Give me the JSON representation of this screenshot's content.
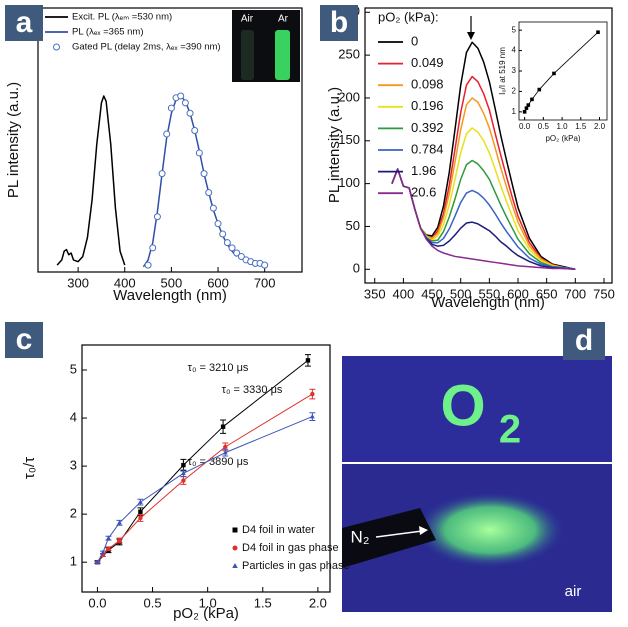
{
  "chart_data": [
    {
      "type": "line",
      "panel_label": "a",
      "xlabel": "Wavelength (nm)",
      "ylabel": "PL intensity (a.u.)",
      "xlim": [
        214,
        780
      ],
      "ylim": [
        -0.02,
        1.51
      ],
      "xticks": [
        300,
        400,
        500,
        600,
        700
      ],
      "inset_labels": [
        "Air",
        "Ar"
      ],
      "series": [
        {
          "name": "Excit. PL (λₑₘ =530 nm)",
          "color": "#000000",
          "style": "line",
          "x": [
            255,
            265,
            270,
            275,
            280,
            285,
            290,
            300,
            310,
            320,
            330,
            340,
            350,
            355,
            360,
            370,
            380,
            390,
            400
          ],
          "values": [
            0.02,
            0.05,
            0.1,
            0.11,
            0.08,
            0.09,
            0.05,
            0.04,
            0.07,
            0.18,
            0.4,
            0.72,
            0.96,
            1.0,
            0.97,
            0.72,
            0.35,
            0.1,
            0.02
          ]
        },
        {
          "name": "PL (λₑₓ =365 nm)",
          "color": "#2f4fa8",
          "style": "line",
          "x": [
            440,
            450,
            460,
            470,
            480,
            490,
            500,
            510,
            520,
            530,
            540,
            550,
            560,
            570,
            580,
            590,
            600,
            610,
            620,
            630,
            640
          ],
          "values": [
            0.01,
            0.05,
            0.15,
            0.33,
            0.55,
            0.76,
            0.9,
            0.98,
            1.0,
            0.97,
            0.9,
            0.8,
            0.68,
            0.55,
            0.44,
            0.34,
            0.26,
            0.19,
            0.14,
            0.1,
            0.07
          ]
        },
        {
          "name": "Gated PL (delay 2ms, λₑₓ =390 nm)",
          "color": "#4a6fc0",
          "style": "markers",
          "x": [
            450,
            460,
            470,
            480,
            490,
            500,
            510,
            520,
            530,
            540,
            550,
            560,
            570,
            580,
            590,
            600,
            610,
            620,
            630,
            640,
            650,
            660,
            670,
            680,
            690,
            700
          ],
          "values": [
            0.02,
            0.12,
            0.3,
            0.55,
            0.78,
            0.93,
            0.99,
            1.0,
            0.96,
            0.9,
            0.8,
            0.67,
            0.55,
            0.44,
            0.35,
            0.26,
            0.2,
            0.15,
            0.12,
            0.09,
            0.07,
            0.05,
            0.04,
            0.03,
            0.03,
            0.02
          ]
        }
      ]
    },
    {
      "type": "line",
      "panel_label": "b",
      "xlabel": "Wavelength (nm)",
      "ylabel": "PL intensity (a.u.)",
      "legend_title": "pO₂ (kPa):",
      "xlim": [
        333,
        764
      ],
      "ylim": [
        -16,
        305
      ],
      "xticks": [
        350,
        400,
        450,
        500,
        550,
        600,
        650,
        700,
        750
      ],
      "yticks": [
        0,
        50,
        100,
        150,
        200,
        250,
        300
      ],
      "x": [
        380,
        390,
        400,
        410,
        420,
        430,
        440,
        450,
        460,
        470,
        480,
        490,
        500,
        510,
        520,
        530,
        540,
        550,
        560,
        570,
        580,
        590,
        600,
        620,
        640,
        660,
        680,
        700
      ],
      "series": [
        {
          "name": "0",
          "color": "#000000",
          "style": "line",
          "values": [
            100,
            117,
            97,
            95,
            70,
            48,
            40,
            39,
            49,
            74,
            113,
            163,
            215,
            253,
            265,
            258,
            242,
            219,
            188,
            156,
            127,
            99,
            72,
            36,
            15,
            6,
            3,
            0
          ]
        },
        {
          "name": "0.049",
          "color": "#e8202a",
          "style": "line",
          "values": [
            100,
            117,
            97,
            95,
            70,
            48,
            39,
            37,
            45,
            65,
            98,
            140,
            183,
            215,
            225,
            219,
            205,
            186,
            159,
            133,
            108,
            84,
            62,
            31,
            13,
            5,
            2,
            0
          ]
        },
        {
          "name": "0.098",
          "color": "#f39a1e",
          "style": "line",
          "values": [
            100,
            117,
            97,
            95,
            70,
            48,
            39,
            36,
            42,
            60,
            88,
            125,
            163,
            192,
            200,
            195,
            182,
            165,
            142,
            118,
            96,
            75,
            55,
            27,
            12,
            5,
            2,
            0
          ]
        },
        {
          "name": "0.196",
          "color": "#e6e21a",
          "style": "line",
          "values": [
            100,
            117,
            97,
            95,
            70,
            48,
            38,
            34,
            39,
            52,
            75,
            105,
            136,
            158,
            165,
            160,
            150,
            136,
            117,
            97,
            79,
            62,
            45,
            23,
            10,
            4,
            2,
            0
          ]
        },
        {
          "name": "0.392",
          "color": "#2e9a3a",
          "style": "line",
          "values": [
            100,
            117,
            97,
            95,
            70,
            48,
            37,
            33,
            34,
            44,
            61,
            82,
            105,
            122,
            127,
            123,
            115,
            105,
            90,
            75,
            61,
            48,
            35,
            18,
            8,
            3,
            2,
            0
          ]
        },
        {
          "name": "0.784",
          "color": "#3a62c8",
          "style": "line",
          "values": [
            100,
            117,
            97,
            95,
            70,
            48,
            37,
            31,
            31,
            36,
            47,
            62,
            78,
            89,
            92,
            89,
            83,
            75,
            65,
            54,
            44,
            35,
            26,
            13,
            6,
            3,
            2,
            0
          ]
        },
        {
          "name": "1.96",
          "color": "#1c1c78",
          "style": "line",
          "values": [
            100,
            117,
            97,
            95,
            70,
            48,
            36,
            29,
            27,
            28,
            33,
            40,
            48,
            54,
            55,
            53,
            49,
            45,
            39,
            32,
            27,
            21,
            16,
            9,
            4,
            2,
            1,
            0
          ]
        },
        {
          "name": "20.6",
          "color": "#8a2a8e",
          "style": "line",
          "values": [
            100,
            117,
            97,
            95,
            70,
            48,
            35,
            27,
            22,
            19,
            17,
            15,
            14,
            13,
            12,
            11,
            10,
            9,
            8,
            7,
            6,
            5,
            4,
            3,
            2,
            1,
            1,
            0
          ]
        }
      ]
    },
    {
      "type": "line",
      "xlabel": "pO₂ (kPa)",
      "ylabel": "I₀/I at 519 nm",
      "xlim": [
        -0.15,
        2.2
      ],
      "ylim": [
        0.6,
        5.4
      ],
      "xticks": [
        {
          "value": 0,
          "label": "0.0"
        },
        0.5,
        {
          "value": 1,
          "label": "1.0"
        },
        1.5,
        {
          "value": 2,
          "label": "2.0"
        }
      ],
      "yticks": [
        1,
        2,
        3,
        4,
        5
      ],
      "x": [
        0,
        0.049,
        0.098,
        0.196,
        0.392,
        0.784,
        1.96
      ],
      "series": [
        {
          "color": "#000000",
          "style": "line+markers",
          "marker": "square",
          "values": [
            1,
            1.18,
            1.33,
            1.61,
            2.09,
            2.88,
            4.9
          ]
        }
      ]
    },
    {
      "type": "scatter",
      "panel_label": "c",
      "xlabel": "pO₂ (kPa)",
      "ylabel": "τ₀/τ",
      "xlim": [
        -0.14,
        2.11
      ],
      "ylim": [
        0.38,
        5.52
      ],
      "xticks": [
        {
          "value": 0,
          "label": "0.0"
        },
        0.5,
        {
          "value": 1,
          "label": "1.0"
        },
        1.5,
        {
          "value": 2,
          "label": "2.0"
        }
      ],
      "yticks": [
        1,
        2,
        3,
        4,
        5
      ],
      "annotations": [
        "τ₀ = 3210 μs",
        "τ₀ = 3330 μs",
        "τ₀ = 3890 μs"
      ],
      "series": [
        {
          "name": "D4 foil in water",
          "color": "#000000",
          "marker": "square",
          "x": [
            0,
            0.1,
            0.2,
            0.39,
            0.78,
            1.14,
            1.91
          ],
          "values": [
            1,
            1.25,
            1.42,
            2.05,
            3.02,
            3.82,
            5.2
          ],
          "errors": [
            0.03,
            0.05,
            0.06,
            0.08,
            0.12,
            0.14,
            0.12
          ]
        },
        {
          "name": "D4 foil in gas phase",
          "color": "#e0302a",
          "marker": "circle",
          "x": [
            0,
            0.05,
            0.1,
            0.2,
            0.39,
            0.78,
            1.16,
            1.95
          ],
          "values": [
            1,
            1.15,
            1.28,
            1.45,
            1.92,
            2.7,
            3.4,
            4.5
          ],
          "errors": [
            0.02,
            0.03,
            0.04,
            0.05,
            0.07,
            0.08,
            0.08,
            0.1
          ]
        },
        {
          "name": "Particles in gas phase",
          "color": "#3a55b8",
          "marker": "triangle",
          "x": [
            0,
            0.05,
            0.1,
            0.2,
            0.39,
            0.78,
            1.16,
            1.95
          ],
          "values": [
            1,
            1.2,
            1.5,
            1.82,
            2.25,
            2.85,
            3.28,
            4.03
          ],
          "errors": [
            0.02,
            0.03,
            0.04,
            0.05,
            0.06,
            0.07,
            0.07,
            0.08
          ]
        }
      ]
    }
  ],
  "photos": {
    "panel_label": "d",
    "sample_text": "O",
    "sample_subscript": "2",
    "gas_label": "N₂",
    "air_label": "air"
  }
}
